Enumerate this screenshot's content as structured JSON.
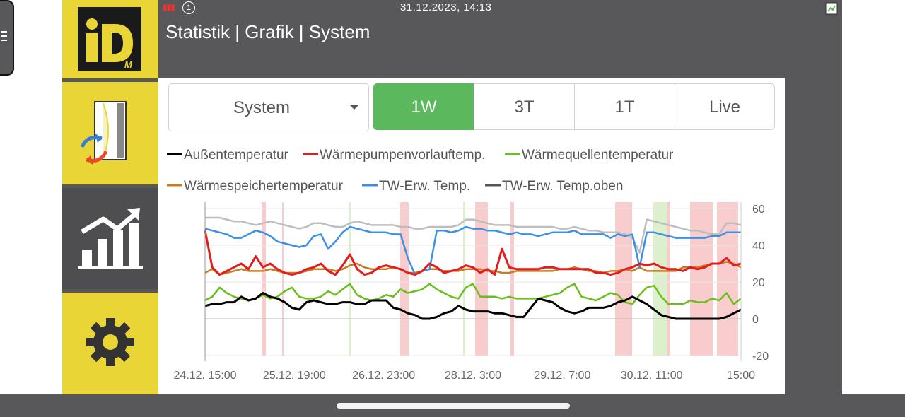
{
  "status_bar": {
    "datetime": "31.12.2023, 14:13",
    "info_symbol": "1"
  },
  "header": {
    "title": "Statistik | Grafik | System"
  },
  "logo": {
    "text": "iD",
    "sub": "M"
  },
  "sidebar": {
    "items": [
      {
        "name": "logo",
        "icon": "idm-logo"
      },
      {
        "name": "heat-exchange",
        "icon": "heat-exchange-icon"
      },
      {
        "name": "statistics",
        "icon": "chart-icon",
        "active": true
      },
      {
        "name": "settings",
        "icon": "gear-icon"
      }
    ]
  },
  "controls": {
    "dropdown": {
      "selected": "System"
    },
    "ranges": [
      {
        "label": "1W",
        "active": true
      },
      {
        "label": "3T",
        "active": false
      },
      {
        "label": "1T",
        "active": false
      },
      {
        "label": "Live",
        "active": false
      }
    ]
  },
  "colors": {
    "accent_green": "#5cb85c",
    "brand_yellow": "#e9d636",
    "frame_gray": "#58585a"
  },
  "chart_data": {
    "type": "line",
    "x_tick_labels": [
      "24.12. 15:00",
      "25.12. 19:00",
      "26.12. 23:00",
      "28.12. 3:00",
      "29.12. 7:00",
      "30.12. 11:00",
      "15:00"
    ],
    "y_ticks": [
      60,
      40,
      20,
      0,
      -20
    ],
    "ylim": [
      -20,
      60
    ],
    "grid": true,
    "legend_position": "top",
    "series": [
      {
        "name": "Außentemperatur",
        "color": "#000000",
        "values": [
          7,
          8,
          8,
          9,
          9,
          12,
          10,
          11,
          14,
          12,
          11,
          9,
          6,
          5,
          9,
          10,
          9,
          8,
          8,
          9,
          9,
          8,
          8,
          10,
          10,
          10,
          6,
          5,
          3,
          2,
          0,
          0,
          1,
          3,
          4,
          7,
          5,
          4,
          4,
          4,
          3,
          3,
          2,
          1,
          1,
          6,
          11,
          10,
          9,
          6,
          4,
          3,
          4,
          6,
          6,
          6,
          7,
          9,
          10,
          12,
          10,
          8,
          5,
          2,
          1,
          0,
          0,
          0,
          0,
          0,
          0,
          0,
          1,
          3,
          5
        ]
      },
      {
        "name": "Wärmepumpenvorlauftemp.",
        "color": "#e31d1d",
        "values": [
          48,
          28,
          24,
          26,
          28,
          30,
          27,
          34,
          28,
          30,
          27,
          25,
          24,
          25,
          27,
          28,
          30,
          26,
          24,
          29,
          35,
          27,
          24,
          25,
          28,
          29,
          28,
          27,
          25,
          24,
          26,
          30,
          28,
          25,
          26,
          27,
          29,
          28,
          25,
          27,
          24,
          38,
          28,
          27,
          27,
          27,
          27,
          28,
          28,
          27,
          27,
          27,
          27,
          27,
          25,
          25,
          24,
          25,
          27,
          28,
          30,
          29,
          30,
          28,
          27,
          27,
          26,
          28,
          27,
          28,
          30,
          30,
          33,
          29,
          30
        ]
      },
      {
        "name": "Wärmequellentemperatur",
        "color": "#6abf1d",
        "values": [
          10,
          12,
          17,
          14,
          12,
          11,
          10,
          11,
          13,
          11,
          12,
          15,
          17,
          12,
          11,
          11,
          12,
          15,
          13,
          16,
          19,
          13,
          11,
          10,
          11,
          13,
          12,
          16,
          14,
          15,
          16,
          19,
          16,
          14,
          12,
          11,
          17,
          19,
          12,
          12,
          12,
          11,
          12,
          11,
          11,
          11,
          11,
          12,
          13,
          14,
          17,
          19,
          12,
          11,
          10,
          12,
          14,
          13,
          9,
          8,
          13,
          17,
          18,
          12,
          8,
          8,
          8,
          10,
          9,
          9,
          11,
          10,
          14,
          8,
          11
        ]
      },
      {
        "name": "Wärmespeichertemperatur",
        "color": "#c87c1f",
        "values": [
          25,
          27,
          24,
          25,
          26,
          27,
          26,
          26,
          26,
          27,
          26,
          25,
          25,
          25,
          26,
          27,
          27,
          27,
          26,
          27,
          29,
          30,
          28,
          27,
          27,
          27,
          28,
          27,
          25,
          25,
          26,
          27,
          27,
          26,
          26,
          26,
          27,
          27,
          27,
          26,
          26,
          25,
          25,
          26,
          26,
          26,
          26,
          26,
          26,
          27,
          27,
          28,
          27,
          26,
          26,
          25,
          26,
          26,
          27,
          26,
          28,
          26,
          26,
          26,
          26,
          26,
          28,
          28,
          28,
          29,
          30,
          30,
          31,
          30,
          28
        ]
      },
      {
        "name": "TW-Erw. Temp.",
        "color": "#3b8fe4",
        "values": [
          49,
          48,
          47,
          46,
          44,
          44,
          46,
          48,
          47,
          45,
          42,
          41,
          40,
          39,
          40,
          45,
          46,
          38,
          42,
          47,
          50,
          49,
          48,
          47,
          47,
          47,
          46,
          46,
          33,
          24,
          26,
          27,
          48,
          48,
          47,
          48,
          50,
          49,
          49,
          48,
          48,
          47,
          46,
          47,
          46,
          46,
          45,
          46,
          47,
          47,
          47,
          48,
          46,
          46,
          46,
          46,
          44,
          46,
          45,
          46,
          28,
          47,
          47,
          46,
          45,
          44,
          44,
          44,
          44,
          44,
          45,
          45,
          47,
          47,
          47
        ]
      },
      {
        "name": "TW-Erw. Temp.oben",
        "color": "#555555",
        "values": [
          55,
          55,
          55,
          54,
          53,
          53,
          52,
          51,
          52,
          53,
          52,
          51,
          50,
          49,
          50,
          52,
          52,
          51,
          50,
          50,
          52,
          53,
          52,
          51,
          51,
          51,
          51,
          50,
          50,
          49,
          49,
          50,
          50,
          50,
          50,
          51,
          54,
          54,
          53,
          52,
          51,
          51,
          51,
          50,
          50,
          50,
          50,
          50,
          50,
          49,
          49,
          50,
          49,
          48,
          48,
          47,
          47,
          47,
          46,
          44,
          36,
          54,
          53,
          52,
          51,
          50,
          49,
          48,
          48,
          47,
          46,
          46,
          52,
          52,
          51
        ]
      }
    ]
  }
}
